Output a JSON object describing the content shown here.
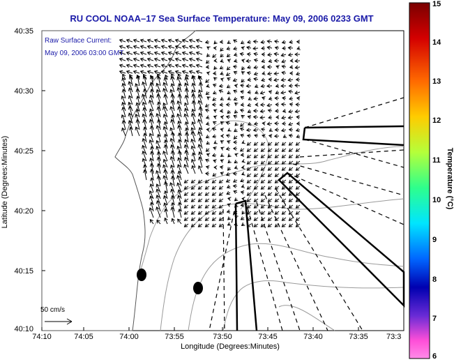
{
  "title": "RU COOL  NOAA–17  Sea Surface Temperature:  May 09, 2006 0233 GMT",
  "xlabel": "Longitude (Degrees:Minutes)",
  "ylabel": "Latitude (Degrees:Minutes)",
  "current_title": "Raw Surface Current:",
  "current_time": "May 09, 2006 03:00 GMT",
  "scale_label": "50 cm/s",
  "x_ticks": [
    "74:10",
    "74:05",
    "74:00",
    "73:55",
    "73:50",
    "73:45",
    "73:40",
    "73:35",
    "73:3"
  ],
  "y_ticks": [
    "40:35",
    "40:30",
    "40:25",
    "40:20",
    "40:15",
    "40:10"
  ],
  "colorbar": {
    "title": "Temperature (°C)",
    "ticks": [
      "15",
      "14",
      "13",
      "12",
      "11",
      "10",
      "9",
      "8",
      "7",
      "6"
    ]
  },
  "colors": {
    "title": "#1a1aa8",
    "contour": "#9a9a9a",
    "land": "#ffffff",
    "vectors": "#000000"
  }
}
